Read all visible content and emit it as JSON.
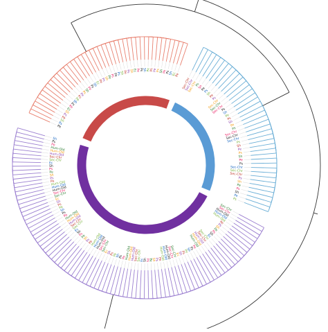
{
  "figure": {
    "background_color": "#ffffff",
    "guide_line_color": "#d9d9d9",
    "outer_branch_color": "#333333",
    "clades": [
      {
        "name": "clade-red",
        "branch_color": "#e8806f",
        "ring_color": "#c84a48",
        "leaf_count": 44,
        "arc_deg": [
          203,
          290
        ],
        "leaf_labels": [
          "Pe",
          "Ps",
          "Sh",
          "Pe",
          "Ps",
          "Sh",
          "Ec",
          "Pe",
          "Ps",
          "Sh",
          "Pe",
          "Ps"
        ]
      },
      {
        "name": "clade-blue",
        "branch_color": "#6aaed6",
        "ring_color": "#5a9bd5",
        "leaf_count": 40,
        "arc_deg": [
          295,
          382
        ],
        "leaf_labels": [
          "Sec-Chr",
          "Sec-Chr",
          "Sec-Chr",
          "Ps",
          "Sh",
          "Pe",
          "Ps",
          "Sh",
          "Pe",
          "Ps"
        ]
      },
      {
        "name": "clade-purple",
        "branch_color": "#9b7fd0",
        "ring_color": "#7030a0",
        "leaf_count": 92,
        "arc_deg": [
          27,
          197
        ],
        "leaf_labels": [
          "Sec-Chr",
          "Sec-Chr",
          "Hum-Old",
          "Hum-Old",
          "Hum-Old",
          "Pe",
          "Ps",
          "Sh",
          "Pe",
          "Ps",
          "Sh",
          "Ec"
        ]
      }
    ],
    "leaf_label_colors": [
      "#222222",
      "#c0392b",
      "#2e7d32",
      "#1565c0",
      "#8e44ad",
      "#e91e63",
      "#7cb342",
      "#f39c12"
    ]
  }
}
